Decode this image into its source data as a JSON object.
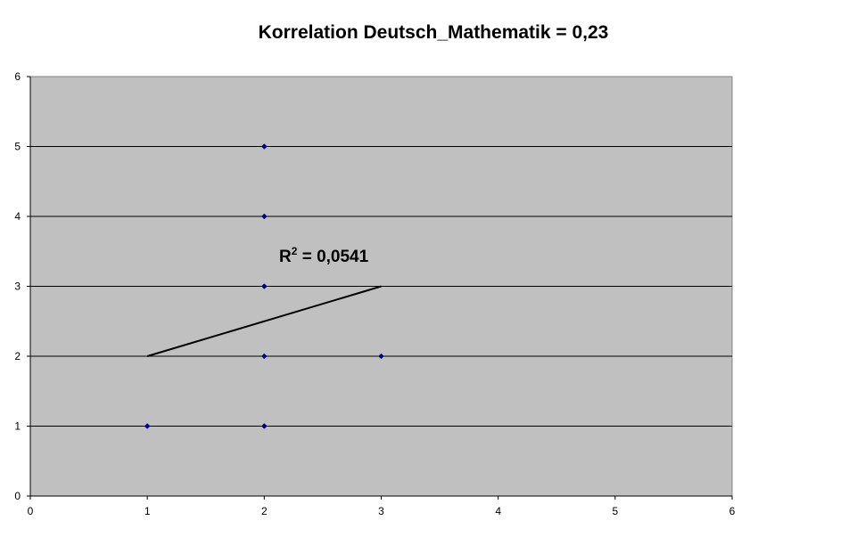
{
  "chart_data": {
    "type": "scatter",
    "title": "Korrelation Deutsch_Mathematik = 0,23",
    "xlabel": "",
    "ylabel": "",
    "xlim": [
      0,
      6
    ],
    "ylim": [
      0,
      6
    ],
    "x_ticks": [
      "0",
      "1",
      "2",
      "3",
      "4",
      "5",
      "6"
    ],
    "y_ticks": [
      "0",
      "1",
      "2",
      "3",
      "4",
      "5",
      "6"
    ],
    "grid": "horizontal",
    "plot_background": "#c0c0c0",
    "marker_color": "#000080",
    "points": [
      {
        "x": 1,
        "y": 1
      },
      {
        "x": 2,
        "y": 1
      },
      {
        "x": 2,
        "y": 2
      },
      {
        "x": 2,
        "y": 3
      },
      {
        "x": 2,
        "y": 4
      },
      {
        "x": 2,
        "y": 5
      },
      {
        "x": 3,
        "y": 2
      }
    ],
    "trendline": {
      "type": "linear",
      "from": {
        "x": 1,
        "y": 2
      },
      "to": {
        "x": 3,
        "y": 3
      },
      "color": "#000000"
    },
    "annotation": {
      "r_label": "R",
      "superscript": "2",
      "value_text": " = 0,0541"
    }
  }
}
